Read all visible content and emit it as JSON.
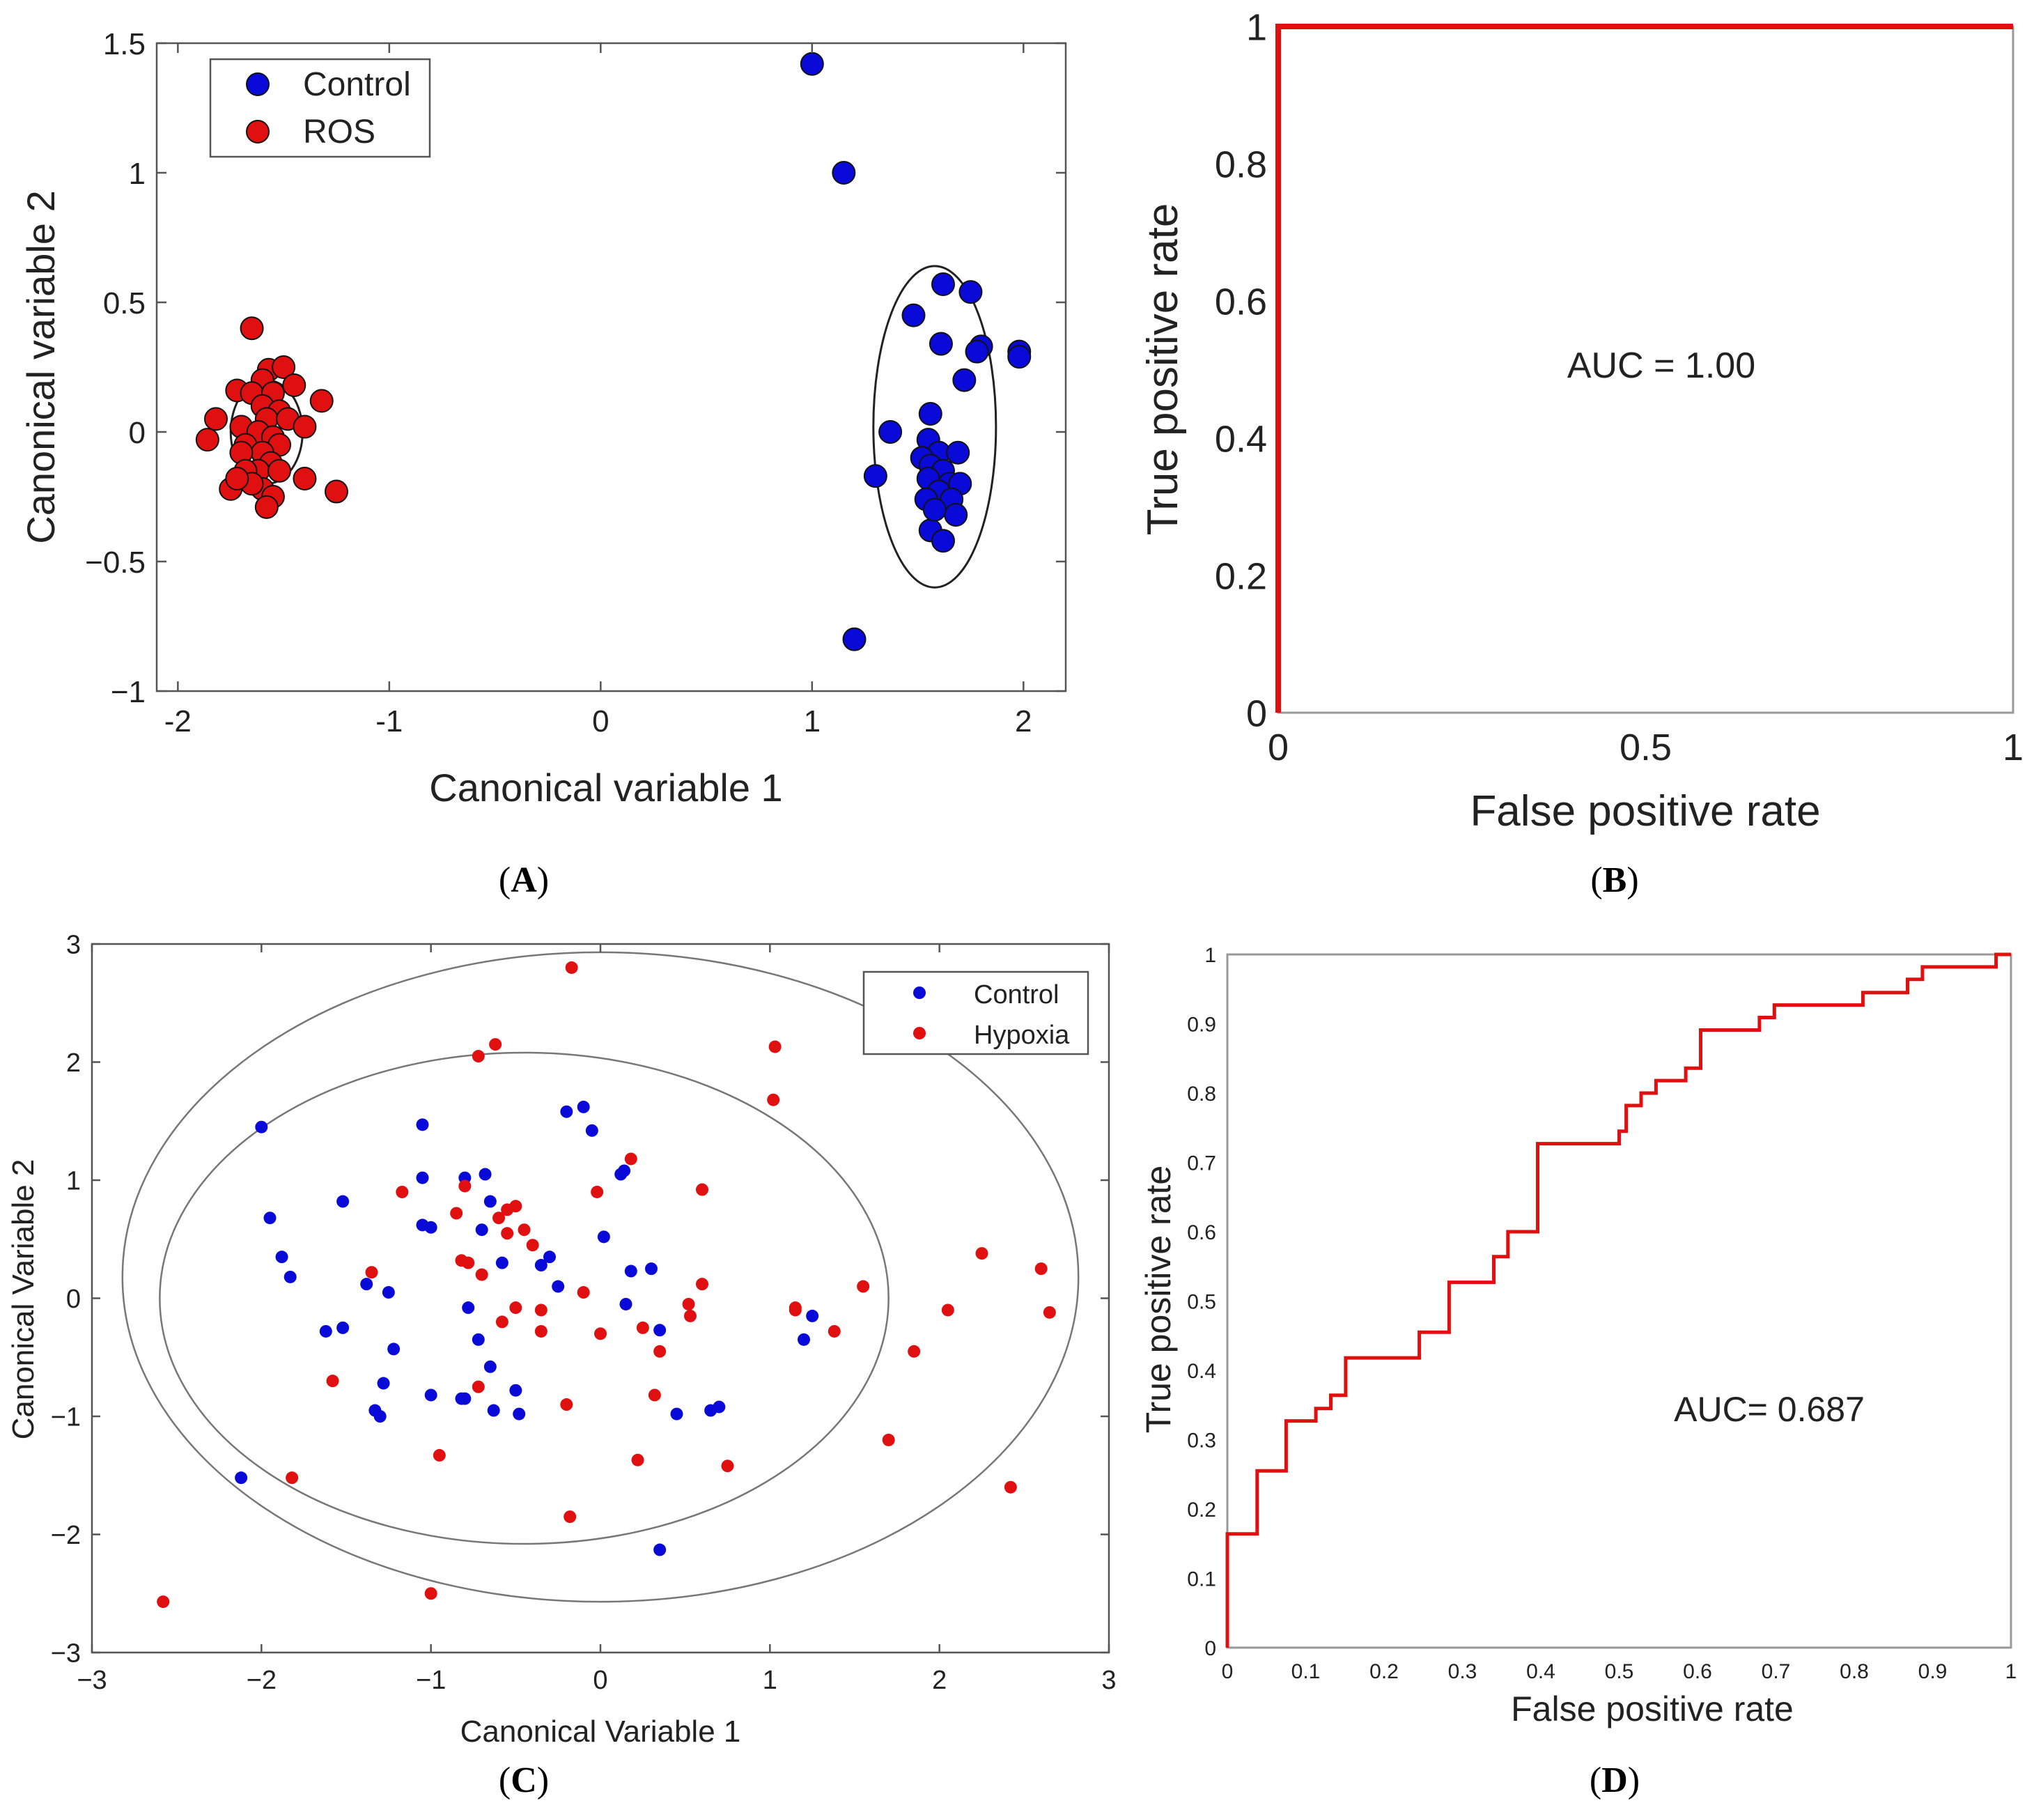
{
  "chart_data": [
    {
      "id": "A",
      "type": "scatter",
      "caption": "A",
      "xlabel": "Canonical variable 1",
      "ylabel": "Canonical variable 2",
      "xlim": [
        -2.1,
        2.2
      ],
      "ylim": [
        -1,
        1.5
      ],
      "xticks": [
        -2,
        -1,
        0,
        1,
        2
      ],
      "yticks": [
        -1,
        -0.5,
        0,
        0.5,
        1,
        1.5
      ],
      "xtick_labels": [
        "-2",
        "-1",
        "0",
        "1",
        "2"
      ],
      "ytick_labels": [
        "−1",
        "−0.5",
        "0",
        "0.5",
        "1",
        "1.5"
      ],
      "legend": {
        "placement": "top-left",
        "entries": [
          "Control",
          "ROS"
        ]
      },
      "colors": {
        "Control": "#0a0ad8",
        "ROS": "#e01010"
      },
      "series": [
        {
          "name": "Control",
          "points": [
            [
              1.0,
              1.42
            ],
            [
              1.15,
              1.0
            ],
            [
              1.2,
              -0.8
            ],
            [
              1.62,
              0.57
            ],
            [
              1.75,
              0.54
            ],
            [
              1.48,
              0.45
            ],
            [
              1.8,
              0.33
            ],
            [
              1.78,
              0.31
            ],
            [
              1.61,
              0.34
            ],
            [
              1.98,
              0.31
            ],
            [
              1.98,
              0.29
            ],
            [
              1.72,
              0.2
            ],
            [
              1.37,
              0.0
            ],
            [
              1.56,
              0.07
            ],
            [
              1.3,
              -0.17
            ],
            [
              1.55,
              -0.03
            ],
            [
              1.6,
              -0.08
            ],
            [
              1.52,
              -0.1
            ],
            [
              1.69,
              -0.08
            ],
            [
              1.56,
              -0.13
            ],
            [
              1.62,
              -0.15
            ],
            [
              1.55,
              -0.18
            ],
            [
              1.65,
              -0.2
            ],
            [
              1.7,
              -0.2
            ],
            [
              1.6,
              -0.23
            ],
            [
              1.54,
              -0.26
            ],
            [
              1.66,
              -0.26
            ],
            [
              1.68,
              -0.32
            ],
            [
              1.56,
              -0.38
            ],
            [
              1.62,
              -0.42
            ],
            [
              1.58,
              -0.3
            ]
          ]
        },
        {
          "name": "ROS",
          "points": [
            [
              -1.65,
              0.4
            ],
            [
              -1.57,
              0.24
            ],
            [
              -1.5,
              0.25
            ],
            [
              -1.6,
              0.2
            ],
            [
              -1.72,
              0.16
            ],
            [
              -1.65,
              0.15
            ],
            [
              -1.55,
              0.15
            ],
            [
              -1.45,
              0.18
            ],
            [
              -1.32,
              0.12
            ],
            [
              -1.6,
              0.1
            ],
            [
              -1.52,
              0.08
            ],
            [
              -1.58,
              0.05
            ],
            [
              -1.48,
              0.05
            ],
            [
              -1.82,
              0.05
            ],
            [
              -1.7,
              0.02
            ],
            [
              -1.4,
              0.02
            ],
            [
              -1.62,
              0.0
            ],
            [
              -1.55,
              -0.02
            ],
            [
              -1.68,
              -0.05
            ],
            [
              -1.52,
              -0.05
            ],
            [
              -1.86,
              -0.03
            ],
            [
              -1.6,
              -0.08
            ],
            [
              -1.7,
              -0.08
            ],
            [
              -1.56,
              -0.12
            ],
            [
              -1.62,
              -0.15
            ],
            [
              -1.52,
              -0.15
            ],
            [
              -1.68,
              -0.15
            ],
            [
              -1.4,
              -0.18
            ],
            [
              -1.75,
              -0.22
            ],
            [
              -1.6,
              -0.22
            ],
            [
              -1.65,
              -0.2
            ],
            [
              -1.55,
              -0.25
            ],
            [
              -1.58,
              -0.29
            ],
            [
              -1.25,
              -0.23
            ],
            [
              -1.72,
              -0.18
            ]
          ]
        }
      ],
      "ellipses": [
        {
          "cx": 1.58,
          "cy": 0.02,
          "rx": 0.29,
          "ry": 0.62
        },
        {
          "cx": -1.58,
          "cy": 0.0,
          "rx": 0.17,
          "ry": 0.2
        }
      ]
    },
    {
      "id": "B",
      "type": "line",
      "caption": "B",
      "xlabel": "False positive rate",
      "ylabel": "True positive rate",
      "xlim": [
        0,
        1
      ],
      "ylim": [
        0,
        1
      ],
      "xticks": [
        0,
        0.5,
        1
      ],
      "yticks": [
        0,
        0.2,
        0.4,
        0.6,
        0.8,
        1
      ],
      "xtick_labels": [
        "0",
        "0.5",
        "1"
      ],
      "ytick_labels": [
        "0",
        "0.2",
        "0.4",
        "0.6",
        "0.8",
        "1"
      ],
      "annotation": "AUC = 1.00",
      "color": "#e01010",
      "series": [
        {
          "name": "ROC",
          "points": [
            [
              0,
              0
            ],
            [
              0,
              1
            ],
            [
              1,
              1
            ]
          ]
        }
      ]
    },
    {
      "id": "C",
      "type": "scatter",
      "caption": "C",
      "xlabel": "Canonical  Variable 1",
      "ylabel": "Canonical  Variable 2",
      "xlim": [
        -3,
        3
      ],
      "ylim": [
        -3,
        3
      ],
      "xticks": [
        -3,
        -2,
        -1,
        0,
        1,
        2,
        3
      ],
      "yticks": [
        -3,
        -2,
        -1,
        0,
        1,
        2,
        3
      ],
      "xtick_labels": [
        "−3",
        "−2",
        "−1",
        "0",
        "1",
        "2",
        "3"
      ],
      "ytick_labels": [
        "−3",
        "−2",
        "−1",
        "0",
        "1",
        "2",
        "3"
      ],
      "legend": {
        "placement": "top-right",
        "entries": [
          "Control",
          "Hypoxia"
        ]
      },
      "colors": {
        "Control": "#0a0ad8",
        "Hypoxia": "#e01010"
      },
      "series": [
        {
          "name": "Control",
          "points": [
            [
              -2.0,
              1.45
            ],
            [
              -1.95,
              0.68
            ],
            [
              -1.88,
              0.35
            ],
            [
              -1.83,
              0.18
            ],
            [
              -1.62,
              -0.28
            ],
            [
              -1.52,
              0.82
            ],
            [
              -1.52,
              -0.25
            ],
            [
              -1.38,
              0.12
            ],
            [
              -1.33,
              -0.95
            ],
            [
              -1.3,
              -1.0
            ],
            [
              -1.28,
              -0.72
            ],
            [
              -1.25,
              0.05
            ],
            [
              -1.22,
              -0.43
            ],
            [
              -1.05,
              1.47
            ],
            [
              -1.05,
              0.62
            ],
            [
              -1.05,
              1.02
            ],
            [
              -1.0,
              0.6
            ],
            [
              -1.0,
              -0.82
            ],
            [
              -0.8,
              -0.85
            ],
            [
              -0.8,
              1.02
            ],
            [
              -0.78,
              -0.08
            ],
            [
              -0.72,
              -0.35
            ],
            [
              -0.7,
              0.58
            ],
            [
              -0.68,
              1.05
            ],
            [
              -0.65,
              -0.58
            ],
            [
              -0.65,
              0.82
            ],
            [
              -0.63,
              -0.95
            ],
            [
              -0.58,
              0.3
            ],
            [
              -0.5,
              -0.78
            ],
            [
              -0.48,
              -0.98
            ],
            [
              -0.35,
              0.28
            ],
            [
              -0.3,
              0.35
            ],
            [
              -0.25,
              0.1
            ],
            [
              -0.2,
              1.58
            ],
            [
              -0.1,
              1.62
            ],
            [
              -0.05,
              1.42
            ],
            [
              0.02,
              0.52
            ],
            [
              0.12,
              1.05
            ],
            [
              0.14,
              1.08
            ],
            [
              0.15,
              -0.05
            ],
            [
              0.18,
              0.23
            ],
            [
              0.3,
              0.25
            ],
            [
              0.35,
              -0.27
            ],
            [
              0.35,
              -2.13
            ],
            [
              0.45,
              -0.98
            ],
            [
              0.65,
              -0.95
            ],
            [
              0.7,
              -0.92
            ],
            [
              1.2,
              -0.35
            ],
            [
              1.25,
              -0.15
            ],
            [
              -2.12,
              -1.52
            ],
            [
              -0.82,
              -0.85
            ]
          ]
        },
        {
          "name": "Hypoxia",
          "points": [
            [
              -0.17,
              2.8
            ],
            [
              -0.62,
              2.15
            ],
            [
              -0.72,
              2.05
            ],
            [
              1.03,
              2.13
            ],
            [
              1.02,
              1.68
            ],
            [
              0.18,
              1.18
            ],
            [
              -1.17,
              0.9
            ],
            [
              -0.8,
              0.95
            ],
            [
              -0.85,
              0.72
            ],
            [
              -0.6,
              0.68
            ],
            [
              -0.55,
              0.75
            ],
            [
              -0.5,
              0.78
            ],
            [
              -0.55,
              0.55
            ],
            [
              -0.45,
              0.58
            ],
            [
              -0.4,
              0.45
            ],
            [
              -0.02,
              0.9
            ],
            [
              0.6,
              0.92
            ],
            [
              -0.82,
              0.32
            ],
            [
              -0.78,
              0.3
            ],
            [
              -0.7,
              0.2
            ],
            [
              -1.35,
              0.22
            ],
            [
              -0.58,
              -0.2
            ],
            [
              -0.5,
              -0.08
            ],
            [
              -0.35,
              -0.28
            ],
            [
              -0.1,
              0.05
            ],
            [
              0.0,
              -0.3
            ],
            [
              0.25,
              -0.25
            ],
            [
              0.35,
              -0.45
            ],
            [
              0.32,
              -0.82
            ],
            [
              0.52,
              -0.05
            ],
            [
              0.53,
              -0.15
            ],
            [
              0.6,
              0.12
            ],
            [
              1.15,
              -0.1
            ],
            [
              1.15,
              -0.08
            ],
            [
              1.38,
              -0.28
            ],
            [
              1.55,
              0.1
            ],
            [
              1.85,
              -0.45
            ],
            [
              2.05,
              -0.1
            ],
            [
              2.25,
              0.38
            ],
            [
              2.6,
              0.25
            ],
            [
              2.65,
              -0.12
            ],
            [
              -1.58,
              -0.7
            ],
            [
              -0.72,
              -0.75
            ],
            [
              -0.2,
              -0.9
            ],
            [
              -0.95,
              -1.33
            ],
            [
              0.22,
              -1.37
            ],
            [
              0.75,
              -1.42
            ],
            [
              1.7,
              -1.2
            ],
            [
              -1.82,
              -1.52
            ],
            [
              -0.18,
              -1.85
            ],
            [
              -1.0,
              -2.5
            ],
            [
              2.42,
              -1.6
            ],
            [
              -2.58,
              -2.57
            ],
            [
              -0.35,
              -0.1
            ]
          ]
        }
      ],
      "ellipses": [
        {
          "cx": -0.45,
          "cy": 0.0,
          "rx": 2.15,
          "ry": 2.08
        },
        {
          "cx": 0.0,
          "cy": 0.18,
          "rx": 2.82,
          "ry": 2.75
        }
      ]
    },
    {
      "id": "D",
      "type": "line",
      "caption": "D",
      "xlabel": "False positive rate",
      "ylabel": "True positive rate",
      "xlim": [
        0,
        1
      ],
      "ylim": [
        0,
        1
      ],
      "xticks": [
        0,
        0.1,
        0.2,
        0.3,
        0.4,
        0.5,
        0.6,
        0.7,
        0.8,
        0.9,
        1
      ],
      "yticks": [
        0,
        0.1,
        0.2,
        0.3,
        0.4,
        0.5,
        0.6,
        0.7,
        0.8,
        0.9,
        1
      ],
      "xtick_labels": [
        "0",
        "0.1",
        "0.2",
        "0.3",
        "0.4",
        "0.5",
        "0.6",
        "0.7",
        "0.8",
        "0.9",
        "1"
      ],
      "ytick_labels": [
        "0",
        "0.1",
        "0.2",
        "0.3",
        "0.4",
        "0.5",
        "0.6",
        "0.7",
        "0.8",
        "0.9",
        "1"
      ],
      "annotation": "AUC= 0.687",
      "color": "#e01010",
      "series": [
        {
          "name": "ROC",
          "points": [
            [
              0,
              0
            ],
            [
              0,
              0.164
            ],
            [
              0.038,
              0.164
            ],
            [
              0.038,
              0.255
            ],
            [
              0.075,
              0.255
            ],
            [
              0.075,
              0.327
            ],
            [
              0.113,
              0.327
            ],
            [
              0.113,
              0.345
            ],
            [
              0.132,
              0.345
            ],
            [
              0.132,
              0.364
            ],
            [
              0.151,
              0.364
            ],
            [
              0.151,
              0.418
            ],
            [
              0.245,
              0.418
            ],
            [
              0.245,
              0.455
            ],
            [
              0.283,
              0.455
            ],
            [
              0.283,
              0.527
            ],
            [
              0.34,
              0.527
            ],
            [
              0.34,
              0.564
            ],
            [
              0.358,
              0.564
            ],
            [
              0.358,
              0.6
            ],
            [
              0.396,
              0.6
            ],
            [
              0.396,
              0.727
            ],
            [
              0.5,
              0.727
            ],
            [
              0.5,
              0.745
            ],
            [
              0.509,
              0.745
            ],
            [
              0.509,
              0.782
            ],
            [
              0.528,
              0.782
            ],
            [
              0.528,
              0.8
            ],
            [
              0.547,
              0.8
            ],
            [
              0.547,
              0.818
            ],
            [
              0.585,
              0.818
            ],
            [
              0.585,
              0.836
            ],
            [
              0.604,
              0.836
            ],
            [
              0.604,
              0.891
            ],
            [
              0.679,
              0.891
            ],
            [
              0.679,
              0.909
            ],
            [
              0.698,
              0.909
            ],
            [
              0.698,
              0.927
            ],
            [
              0.811,
              0.927
            ],
            [
              0.811,
              0.945
            ],
            [
              0.868,
              0.945
            ],
            [
              0.868,
              0.964
            ],
            [
              0.887,
              0.964
            ],
            [
              0.887,
              0.982
            ],
            [
              0.981,
              0.982
            ],
            [
              0.981,
              1.0
            ],
            [
              1,
              1.0
            ]
          ]
        }
      ]
    }
  ]
}
